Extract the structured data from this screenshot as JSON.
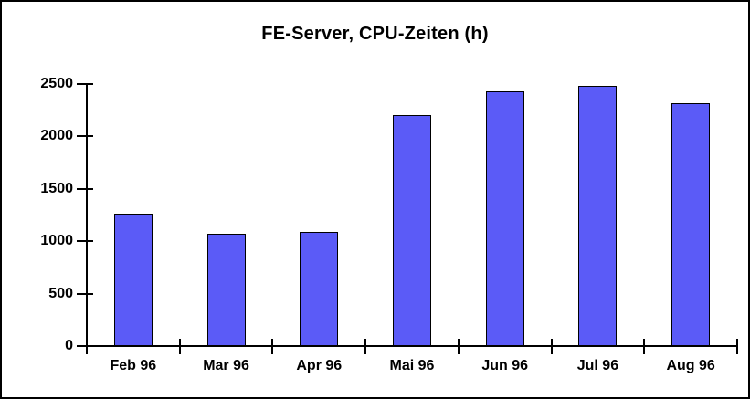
{
  "chart_data": {
    "type": "bar",
    "title": "FE-Server, CPU-Zeiten (h)",
    "categories": [
      "Feb 96",
      "Mar 96",
      "Apr 96",
      "Mai 96",
      "Jun 96",
      "Jul 96",
      "Aug 96"
    ],
    "values": [
      1260,
      1070,
      1090,
      2200,
      2430,
      2480,
      2320
    ],
    "xlabel": "",
    "ylabel": "",
    "ylim": [
      0,
      2500
    ],
    "yticks": [
      0,
      500,
      1000,
      1500,
      2000,
      2500
    ],
    "grid": false,
    "legend_position": "none",
    "bar_color": "#5B5BF7",
    "bar_border_color": "#000000",
    "axis_color": "#000000",
    "background_color": "#FFFFFF",
    "frame_border_color": "#000000"
  }
}
